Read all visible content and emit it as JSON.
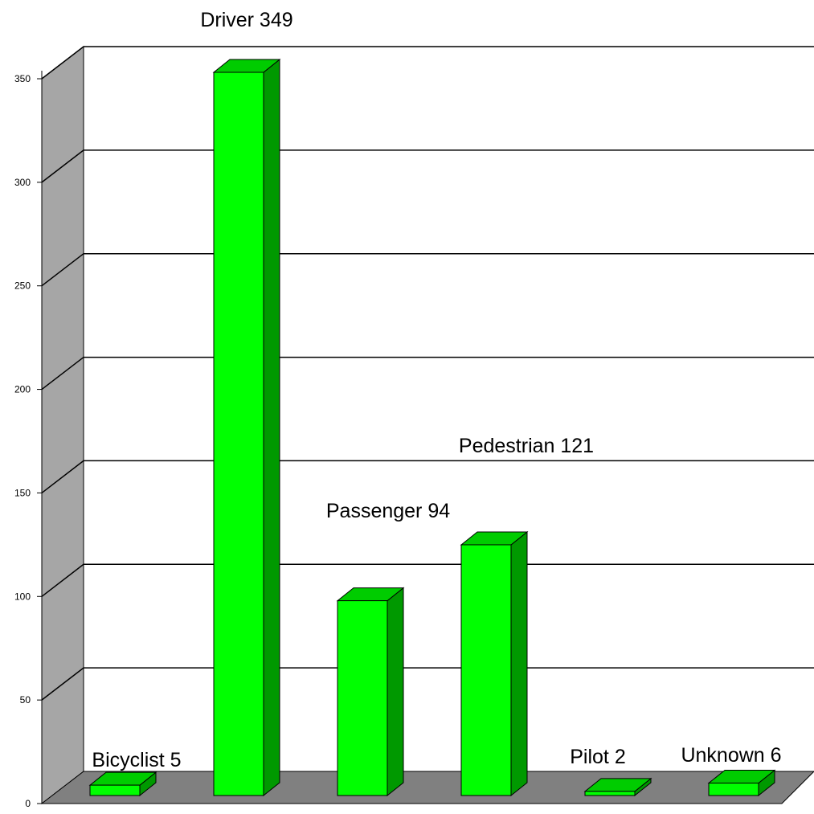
{
  "chart_data": {
    "type": "bar",
    "style": "3d",
    "title": "",
    "xlabel": "",
    "ylabel": "",
    "categories": [
      "Bicyclist",
      "Driver",
      "Passenger",
      "Pedestrian",
      "Pilot",
      "Unknown"
    ],
    "values": [
      5,
      349,
      94,
      121,
      2,
      6
    ],
    "data_labels": [
      "Bicyclist 5",
      "Driver 349",
      "Passenger 94",
      "Pedestrian 121",
      "Pilot 2",
      "Unknown 6"
    ],
    "ylim": [
      0,
      350
    ],
    "yticks": [
      0,
      50,
      100,
      150,
      200,
      250,
      300,
      350
    ],
    "ytick_labels": [
      "0",
      "50",
      "100",
      "150",
      "200",
      "250",
      "300",
      "350"
    ],
    "grid": true,
    "legend": "none",
    "colors": {
      "bar_front": "#00ff00",
      "bar_top": "#00cc00",
      "bar_side": "#009900",
      "wall": "#ffffff",
      "side_wall": "#a6a6a6",
      "floor": "#808080",
      "gridline": "#000000"
    }
  }
}
